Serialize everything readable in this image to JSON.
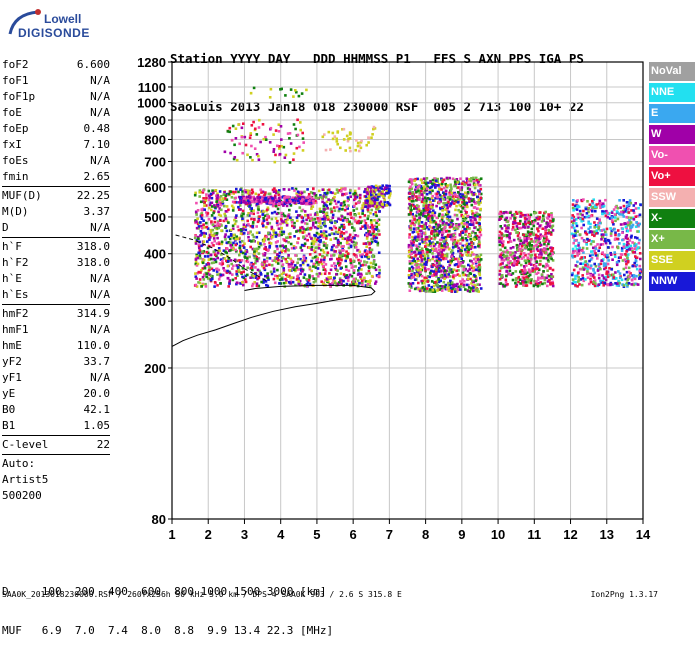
{
  "logo": {
    "line1": "Lowell",
    "line2": "DIGISONDE"
  },
  "header": {
    "line1": "Station YYYY DAY   DDD HHMMSS P1   FFS S AXN PPS IGA PS",
    "line2": "SaoLuis 2013 Jan18 018 230000 RSF  005 2 713 100 10+ 22"
  },
  "params": [
    {
      "name": "foF2",
      "value": "6.600"
    },
    {
      "name": "foF1",
      "value": "N/A"
    },
    {
      "name": "foF1p",
      "value": "N/A"
    },
    {
      "name": "foE",
      "value": "N/A"
    },
    {
      "name": "foEp",
      "value": "0.48"
    },
    {
      "name": "fxI",
      "value": "7.10"
    },
    {
      "name": "foEs",
      "value": "N/A"
    },
    {
      "name": "fmin",
      "value": "2.65"
    },
    {
      "sep": true
    },
    {
      "name": "MUF(D)",
      "value": "22.25"
    },
    {
      "name": "M(D)",
      "value": "3.37"
    },
    {
      "name": "D",
      "value": "N/A"
    },
    {
      "sep": true
    },
    {
      "name": "h`F",
      "value": "318.0"
    },
    {
      "name": "h`F2",
      "value": "318.0"
    },
    {
      "name": "h`E",
      "value": "N/A"
    },
    {
      "name": "h`Es",
      "value": "N/A"
    },
    {
      "sep": true
    },
    {
      "name": "hmF2",
      "value": "314.9"
    },
    {
      "name": "hmF1",
      "value": "N/A"
    },
    {
      "name": "hmE",
      "value": "110.0"
    },
    {
      "name": "yF2",
      "value": "33.7"
    },
    {
      "name": "yF1",
      "value": "N/A"
    },
    {
      "name": "yE",
      "value": "20.0"
    },
    {
      "name": "B0",
      "value": "42.1"
    },
    {
      "name": "B1",
      "value": "1.05"
    },
    {
      "sep": true
    },
    {
      "name": "C-level",
      "value": "22"
    },
    {
      "sep": true
    }
  ],
  "params_extra": [
    "Auto:",
    "Artist5",
    "500200"
  ],
  "legend": [
    {
      "label": "NoVal",
      "color": "#a0a0a0"
    },
    {
      "label": "NNE",
      "color": "#22e0f0"
    },
    {
      "label": "E",
      "color": "#3aa8f0"
    },
    {
      "label": "W",
      "color": "#a000a8"
    },
    {
      "label": "Vo-",
      "color": "#f050b0"
    },
    {
      "label": "Vo+",
      "color": "#ee1040"
    },
    {
      "label": "SSW",
      "color": "#f4b0b0"
    },
    {
      "label": "X-",
      "color": "#108010"
    },
    {
      "label": "X+",
      "color": "#78b848"
    },
    {
      "label": "SSE",
      "color": "#d0d020"
    },
    {
      "label": "NNW",
      "color": "#1818d8"
    }
  ],
  "bottom": {
    "row1": "D     100  200  400  600  800 1000 1500 3000 [km]",
    "row2": "MUF   6.9  7.0  7.4  8.0  8.8  9.9 13.4 22.3 [MHz]"
  },
  "footer": {
    "left": "SAA0K_2013018230000.RSF / 260fx256h 50 kHz 5.0 km / DPS-4 SAA0K 903 / 2.6 S 315.8 E",
    "right": "Ion2Png 1.3.17"
  },
  "chart_data": {
    "type": "scatter",
    "xlabel": "",
    "ylabel": "",
    "xlim": [
      1,
      14
    ],
    "ylim": [
      80,
      1280
    ],
    "y_scale": "log",
    "x_ticks": [
      1,
      2,
      3,
      4,
      5,
      6,
      7,
      8,
      9,
      10,
      11,
      12,
      13,
      14
    ],
    "y_ticks": [
      80,
      200,
      300,
      400,
      500,
      600,
      700,
      800,
      900,
      1000,
      1100,
      1280
    ],
    "grid": true,
    "trace_x": [
      1.0,
      1.3,
      1.7,
      2.2,
      2.7,
      3.2,
      3.8,
      4.4,
      5.0,
      5.6,
      6.1,
      6.5,
      6.6,
      6.5,
      6.0,
      5.0,
      4.0,
      3.3,
      3.0
    ],
    "trace_y": [
      228,
      236,
      244,
      252,
      262,
      272,
      282,
      290,
      296,
      303,
      308,
      312,
      318,
      325,
      330,
      330,
      328,
      324,
      320
    ],
    "dashed_x": [
      1.1,
      1.6,
      2.1,
      2.6,
      3.0,
      3.6
    ],
    "dashed_y": [
      448,
      435,
      415,
      390,
      365,
      340
    ],
    "clusters": [
      {
        "x": [
          1.6,
          6.7
        ],
        "y": [
          330,
          600
        ],
        "n": 1900,
        "colors": [
          "#ee1040",
          "#f050b0",
          "#a000a8",
          "#d0d020",
          "#108010",
          "#78b848",
          "#1818d8"
        ]
      },
      {
        "x": [
          2.8,
          4.9
        ],
        "y": [
          545,
          570
        ],
        "n": 220,
        "colors": [
          "#a000a8",
          "#1818d8",
          "#f050b0"
        ]
      },
      {
        "x": [
          6.3,
          7.0
        ],
        "y": [
          535,
          610
        ],
        "n": 160,
        "colors": [
          "#d0d020",
          "#a000a8",
          "#1818d8"
        ]
      },
      {
        "x": [
          7.5,
          9.5
        ],
        "y": [
          320,
          640
        ],
        "n": 1400,
        "colors": [
          "#ee1040",
          "#f050b0",
          "#d0d020",
          "#a000a8",
          "#78b848",
          "#108010",
          "#1818d8"
        ]
      },
      {
        "x": [
          10.0,
          11.5
        ],
        "y": [
          330,
          520
        ],
        "n": 600,
        "colors": [
          "#ee1040",
          "#f050b0",
          "#78b848",
          "#a000a8",
          "#108010"
        ]
      },
      {
        "x": [
          12.0,
          13.9
        ],
        "y": [
          330,
          560
        ],
        "n": 650,
        "colors": [
          "#22e0f0",
          "#3aa8f0",
          "#a000a8",
          "#f050b0",
          "#ee1040",
          "#1818d8",
          "#78b848"
        ]
      },
      {
        "x": [
          2.4,
          4.6
        ],
        "y": [
          700,
          910
        ],
        "n": 90,
        "colors": [
          "#d0d020",
          "#ee1040",
          "#f050b0",
          "#108010",
          "#a000a8"
        ]
      },
      {
        "x": [
          5.1,
          6.6
        ],
        "y": [
          750,
          870
        ],
        "n": 45,
        "colors": [
          "#d0d020",
          "#f4b0b0"
        ]
      },
      {
        "x": [
          3.1,
          4.8
        ],
        "y": [
          1040,
          1110
        ],
        "n": 14,
        "colors": [
          "#d0d020",
          "#108010"
        ]
      }
    ]
  }
}
